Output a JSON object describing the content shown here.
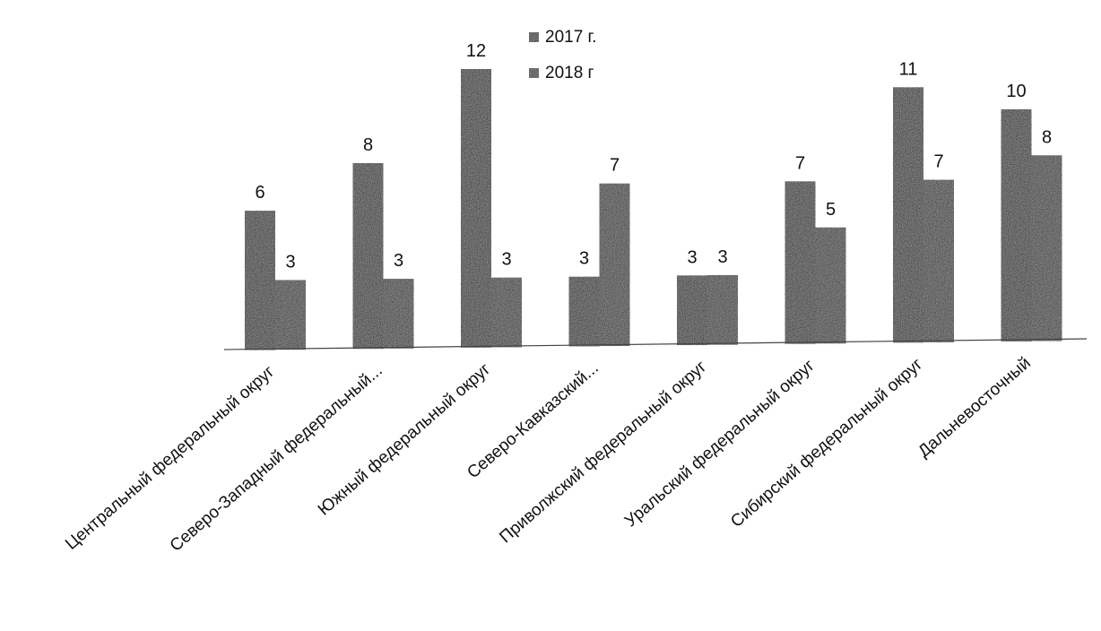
{
  "chart_data": {
    "type": "bar",
    "categories": [
      "Центральный федеральный округ",
      "Северо-Западный федеральный...",
      "Южный федеральный округ",
      "Северо-Кавказский...",
      "Приволжский федеральный округ",
      "Уральский федеральный округ",
      "Сибирский федеральный округ",
      "Дальневосточный"
    ],
    "series": [
      {
        "name": "2017 г.",
        "values": [
          6,
          8,
          12,
          3,
          3,
          7,
          11,
          10
        ],
        "color": "#1e1e1e"
      },
      {
        "name": "2018 г",
        "values": [
          3,
          3,
          3,
          7,
          3,
          5,
          7,
          8
        ],
        "color": "#2a2a2a"
      }
    ],
    "ylim": [
      0,
      12
    ],
    "legend_position": "top-center",
    "grid": false
  }
}
